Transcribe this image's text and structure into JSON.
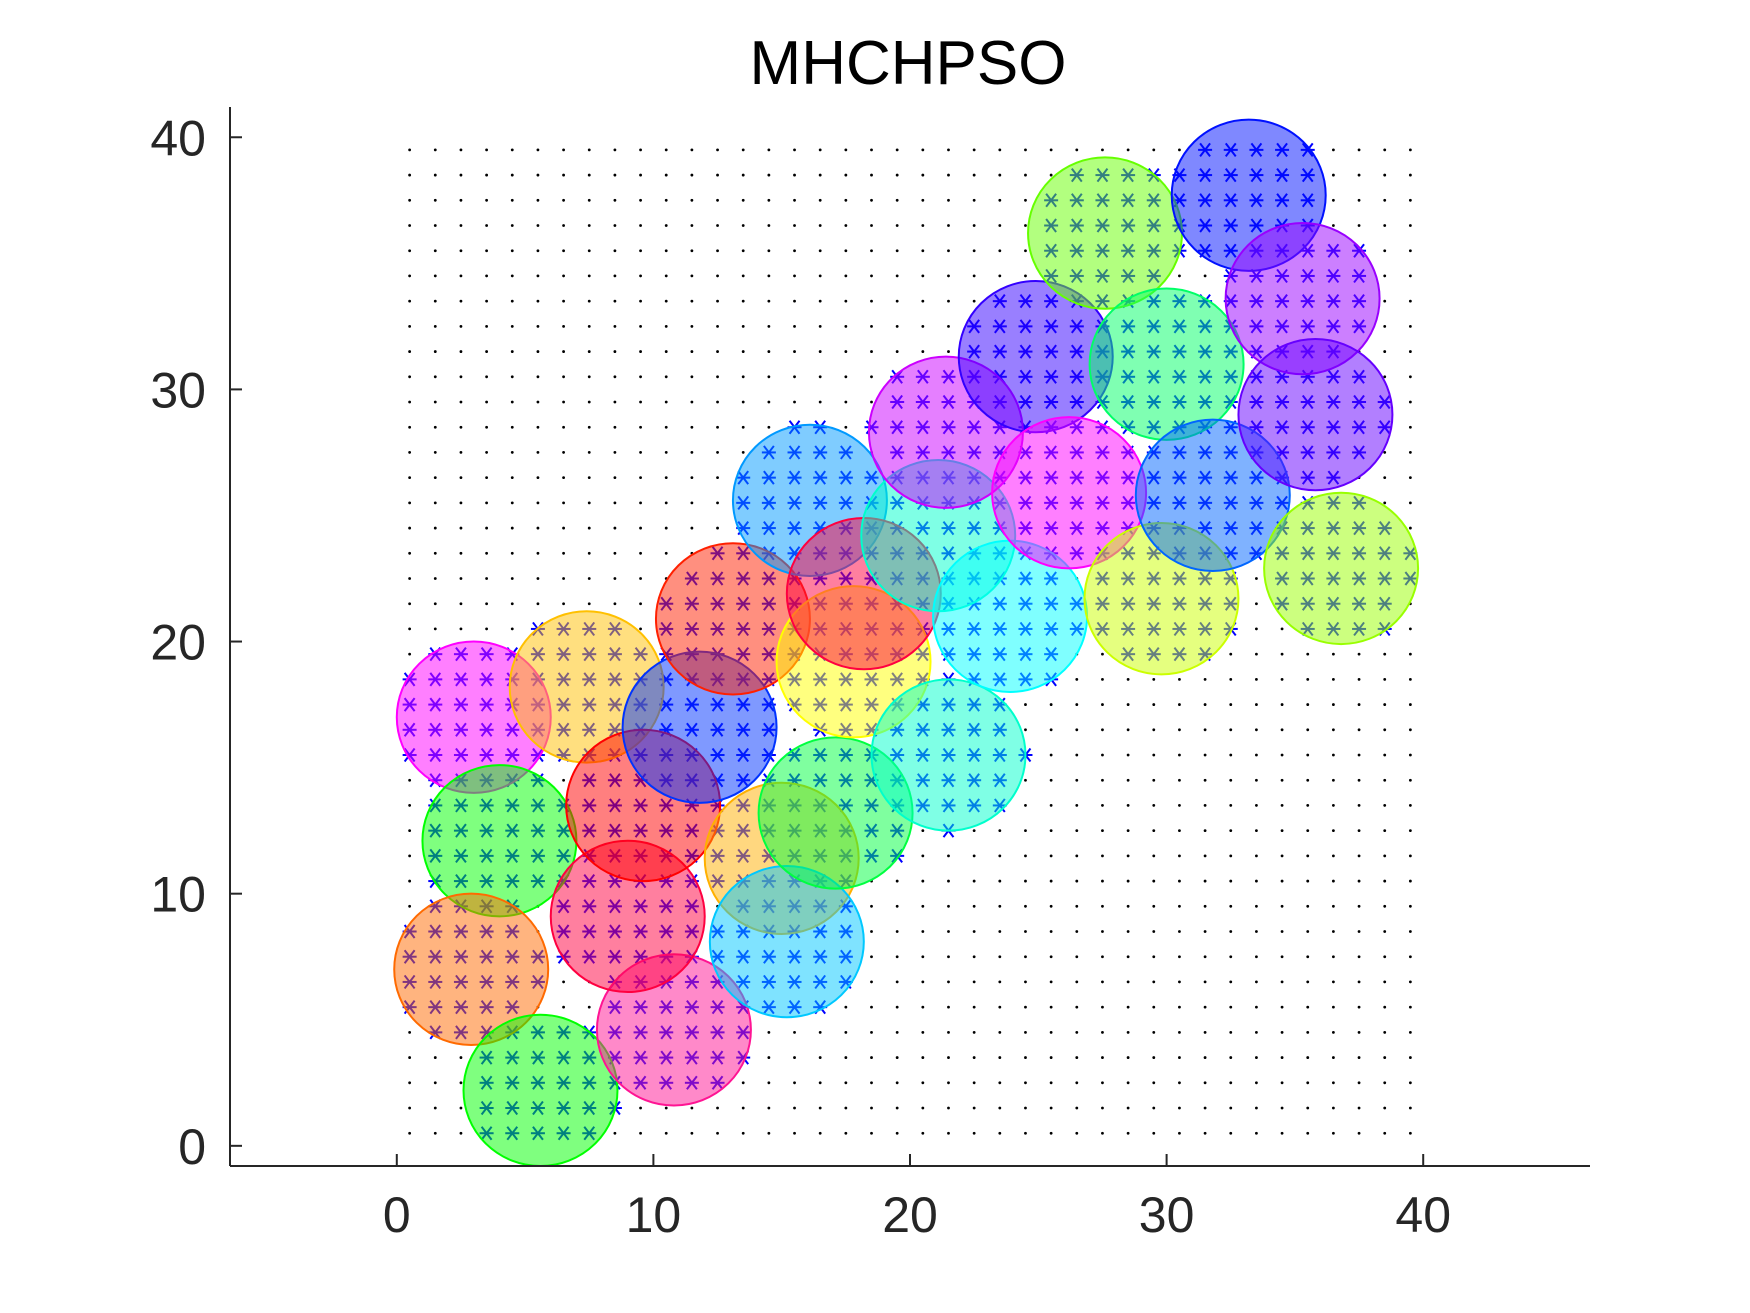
{
  "chart_data": {
    "type": "scatter",
    "title": "MHCHPSO",
    "xlabel": "",
    "ylabel": "",
    "xlim": [
      -6.5,
      46.5
    ],
    "ylim": [
      -0.8,
      41.2
    ],
    "xticks": [
      "0",
      "10",
      "20",
      "30",
      "40"
    ],
    "yticks": [
      "0",
      "10",
      "20",
      "30",
      "40"
    ],
    "grid": false,
    "grid_points": {
      "start": 0.5,
      "end": 39.5,
      "step": 1,
      "marker": "dot",
      "color": "#000000"
    },
    "covered_marker": {
      "marker": "asterisk",
      "color": "#0000ff"
    },
    "sensor_radius": 3,
    "sensors": [
      {
        "x": 3.0,
        "y": 17.0,
        "color": "#ff00ff"
      },
      {
        "x": 7.4,
        "y": 18.2,
        "color": "#ffc000"
      },
      {
        "x": 4.0,
        "y": 12.1,
        "color": "#00ff00"
      },
      {
        "x": 2.9,
        "y": 7.0,
        "color": "#ff6a00"
      },
      {
        "x": 5.6,
        "y": 2.2,
        "color": "#00ff00"
      },
      {
        "x": 10.8,
        "y": 4.6,
        "color": "#ff1493"
      },
      {
        "x": 9.0,
        "y": 9.1,
        "color": "#ff0040"
      },
      {
        "x": 9.6,
        "y": 13.5,
        "color": "#ff0000"
      },
      {
        "x": 11.8,
        "y": 16.6,
        "color": "#0033ff"
      },
      {
        "x": 13.1,
        "y": 20.9,
        "color": "#ff2000"
      },
      {
        "x": 15.0,
        "y": 11.4,
        "color": "#ffb000"
      },
      {
        "x": 15.2,
        "y": 8.1,
        "color": "#00c8ff"
      },
      {
        "x": 17.1,
        "y": 13.2,
        "color": "#00ff40"
      },
      {
        "x": 17.8,
        "y": 19.2,
        "color": "#ffff00"
      },
      {
        "x": 16.1,
        "y": 25.6,
        "color": "#0099ff"
      },
      {
        "x": 18.2,
        "y": 21.9,
        "color": "#ff0040"
      },
      {
        "x": 21.1,
        "y": 24.2,
        "color": "#00ffcc"
      },
      {
        "x": 21.5,
        "y": 15.5,
        "color": "#00ffcc"
      },
      {
        "x": 21.4,
        "y": 28.3,
        "color": "#cc00ff"
      },
      {
        "x": 23.9,
        "y": 21.0,
        "color": "#00ffff"
      },
      {
        "x": 24.9,
        "y": 31.3,
        "color": "#3300ff"
      },
      {
        "x": 26.2,
        "y": 25.9,
        "color": "#ff00ff"
      },
      {
        "x": 27.6,
        "y": 36.2,
        "color": "#66ff00"
      },
      {
        "x": 29.8,
        "y": 21.7,
        "color": "#ccff00"
      },
      {
        "x": 30.0,
        "y": 31.0,
        "color": "#00ff66"
      },
      {
        "x": 31.8,
        "y": 25.8,
        "color": "#0066ff"
      },
      {
        "x": 33.2,
        "y": 37.7,
        "color": "#0011ff"
      },
      {
        "x": 35.3,
        "y": 33.6,
        "color": "#9900ff"
      },
      {
        "x": 35.8,
        "y": 29.0,
        "color": "#6600ff"
      },
      {
        "x": 36.8,
        "y": 22.9,
        "color": "#99ff00"
      }
    ]
  }
}
